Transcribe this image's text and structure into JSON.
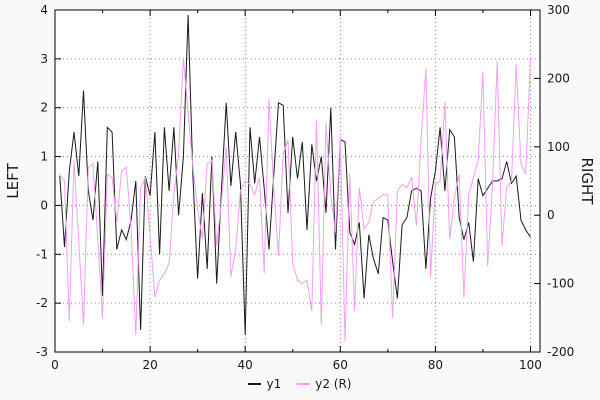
{
  "chart_data": {
    "type": "line",
    "title": "",
    "grid": true,
    "legend_position": "bottom-center",
    "axes": {
      "x": {
        "label": "",
        "range": [
          0,
          102
        ],
        "ticks": [
          0,
          20,
          40,
          60,
          80,
          100
        ],
        "minor_ticks": [
          10,
          30,
          50,
          70,
          90
        ]
      },
      "left": {
        "label": "LEFT",
        "range": [
          -3,
          4
        ],
        "ticks": [
          -3,
          -2,
          -1,
          0,
          1,
          2,
          3,
          4
        ]
      },
      "right": {
        "label": "RIGHT",
        "range": [
          -200,
          300
        ],
        "ticks": [
          -200,
          -100,
          0,
          100,
          200,
          300
        ]
      }
    },
    "x": [
      1,
      2,
      3,
      4,
      5,
      6,
      7,
      8,
      9,
      10,
      11,
      12,
      13,
      14,
      15,
      16,
      17,
      18,
      19,
      20,
      21,
      22,
      23,
      24,
      25,
      26,
      27,
      28,
      29,
      30,
      31,
      32,
      33,
      34,
      35,
      36,
      37,
      38,
      39,
      40,
      41,
      42,
      43,
      44,
      45,
      46,
      47,
      48,
      49,
      50,
      51,
      52,
      53,
      54,
      55,
      56,
      57,
      58,
      59,
      60,
      61,
      62,
      63,
      64,
      65,
      66,
      67,
      68,
      69,
      70,
      71,
      72,
      73,
      74,
      75,
      76,
      77,
      78,
      79,
      80,
      81,
      82,
      83,
      84,
      85,
      86,
      87,
      88,
      89,
      90,
      91,
      92,
      93,
      94,
      95,
      96,
      97,
      98,
      99,
      100
    ],
    "series": [
      {
        "name": "y1",
        "axis": "left",
        "color": "#1a1a1a",
        "values": [
          0.6,
          -0.85,
          0.7,
          1.5,
          0.6,
          2.35,
          0.3,
          -0.3,
          0.9,
          -1.85,
          1.6,
          1.5,
          -0.9,
          -0.5,
          -0.7,
          -0.3,
          0.5,
          -2.55,
          0.6,
          0.2,
          1.5,
          -1.0,
          1.6,
          0.3,
          1.6,
          -0.2,
          1.0,
          3.9,
          0.6,
          -1.5,
          0.25,
          -1.3,
          1.0,
          -1.6,
          0.3,
          2.1,
          0.4,
          1.5,
          0.45,
          -2.65,
          1.6,
          0.45,
          1.4,
          0.35,
          -0.9,
          0.6,
          2.1,
          2.05,
          -0.15,
          1.4,
          0.55,
          1.3,
          -0.5,
          1.25,
          0.5,
          1.0,
          -0.15,
          2.0,
          -0.9,
          1.35,
          1.3,
          -0.55,
          -0.8,
          -0.35,
          -1.9,
          -0.6,
          -1.1,
          -1.4,
          -0.25,
          -0.3,
          -1.15,
          -1.9,
          -0.4,
          -0.25,
          0.3,
          0.35,
          0.3,
          -1.3,
          0.15,
          0.7,
          1.6,
          0.3,
          1.55,
          1.4,
          -0.25,
          -0.7,
          -0.35,
          -1.15,
          0.55,
          0.2,
          0.35,
          0.5,
          0.5,
          0.55,
          0.9,
          0.45,
          0.6,
          -0.3,
          -0.5,
          -0.65
        ]
      },
      {
        "name": "y2 (R)",
        "axis": "right",
        "color": "#f0a0f0",
        "values": [
          60,
          50,
          -155,
          80,
          -40,
          -160,
          70,
          75,
          -35,
          -150,
          60,
          55,
          -10,
          65,
          70,
          -20,
          -175,
          40,
          55,
          -30,
          -120,
          -95,
          -85,
          -70,
          30,
          90,
          230,
          150,
          70,
          10,
          -35,
          75,
          80,
          -45,
          20,
          100,
          -90,
          -50,
          35,
          50,
          45,
          30,
          55,
          -85,
          170,
          40,
          -60,
          90,
          110,
          -70,
          -95,
          -100,
          -95,
          -140,
          140,
          -160,
          135,
          30,
          -25,
          115,
          -185,
          60,
          -140,
          40,
          -20,
          -10,
          20,
          25,
          30,
          30,
          -150,
          35,
          45,
          40,
          55,
          -15,
          110,
          215,
          -90,
          45,
          50,
          165,
          -35,
          25,
          60,
          -120,
          30,
          55,
          80,
          210,
          -75,
          45,
          225,
          -45,
          40,
          50,
          220,
          75,
          60,
          230
        ]
      }
    ]
  }
}
